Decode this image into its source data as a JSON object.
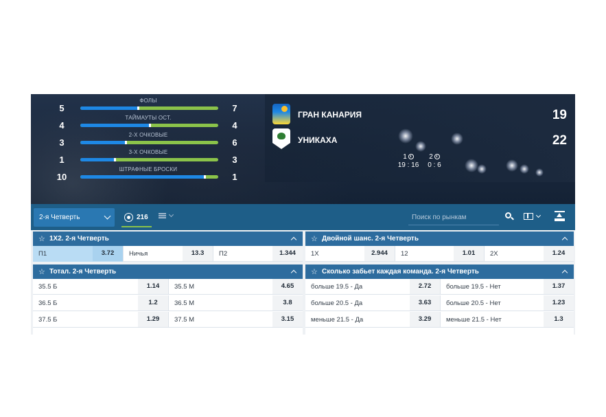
{
  "colors": {
    "accent": "#2d6c9e",
    "toolbar": "#1e5e88",
    "bar_left": "#1e88e5",
    "bar_right": "#8bc34a",
    "selected": "#b9dcf4"
  },
  "stats": [
    {
      "label": "ФОЛЫ",
      "left": "5",
      "right": "7",
      "left_share": 0.42
    },
    {
      "label": "ТАЙМАУТЫ ОСТ.",
      "left": "4",
      "right": "4",
      "left_share": 0.5
    },
    {
      "label": "2-Х ОЧКОВЫЕ",
      "left": "3",
      "right": "6",
      "left_share": 0.33
    },
    {
      "label": "3-Х ОЧКОВЫЕ",
      "left": "1",
      "right": "3",
      "left_share": 0.25
    },
    {
      "label": "ШТРАФНЫЕ БРОСКИ",
      "left": "10",
      "right": "1",
      "left_share": 0.9
    }
  ],
  "scoreboard": {
    "team1": {
      "name": "ГРАН КАНАРИЯ",
      "score": "19"
    },
    "team2": {
      "name": "УНИКАХА",
      "score": "22"
    },
    "quarters": [
      {
        "label": "1",
        "score": "19 : 16"
      },
      {
        "label": "2",
        "score": "0 : 6"
      }
    ]
  },
  "toolbar": {
    "period": "2-я Четверть",
    "markets_count": "216",
    "search_placeholder": "Поиск по рынкам"
  },
  "markets": {
    "x12": {
      "title": "1X2. 2-я Четверть",
      "outcomes": [
        {
          "label": "П1",
          "odd": "3.72"
        },
        {
          "label": "Ничья",
          "odd": "13.3"
        },
        {
          "label": "П2",
          "odd": "1.344"
        }
      ]
    },
    "double": {
      "title": "Двойной шанс. 2-я Четверть",
      "outcomes": [
        {
          "label": "1X",
          "odd": "2.944"
        },
        {
          "label": "12",
          "odd": "1.01"
        },
        {
          "label": "2X",
          "odd": "1.24"
        }
      ]
    },
    "total": {
      "title": "Тотал. 2-я Четверть",
      "rows": [
        {
          "over_label": "35.5 Б",
          "over_odd": "1.14",
          "under_label": "35.5 М",
          "under_odd": "4.65"
        },
        {
          "over_label": "36.5 Б",
          "over_odd": "1.2",
          "under_label": "36.5 М",
          "under_odd": "3.8"
        },
        {
          "over_label": "37.5 Б",
          "over_odd": "1.29",
          "under_label": "37.5 М",
          "under_odd": "3.15"
        }
      ]
    },
    "team_points": {
      "title": "Сколько забьет каждая команда. 2-я Четверть",
      "rows": [
        {
          "yes_label": "больше 19.5 - Да",
          "yes_odd": "2.72",
          "no_label": "больше 19.5 - Нет",
          "no_odd": "1.37"
        },
        {
          "yes_label": "больше 20.5 - Да",
          "yes_odd": "3.63",
          "no_label": "больше 20.5 - Нет",
          "no_odd": "1.23"
        },
        {
          "yes_label": "меньше 21.5 - Да",
          "yes_odd": "3.29",
          "no_label": "меньше 21.5 - Нет",
          "no_odd": "1.3"
        }
      ]
    }
  }
}
